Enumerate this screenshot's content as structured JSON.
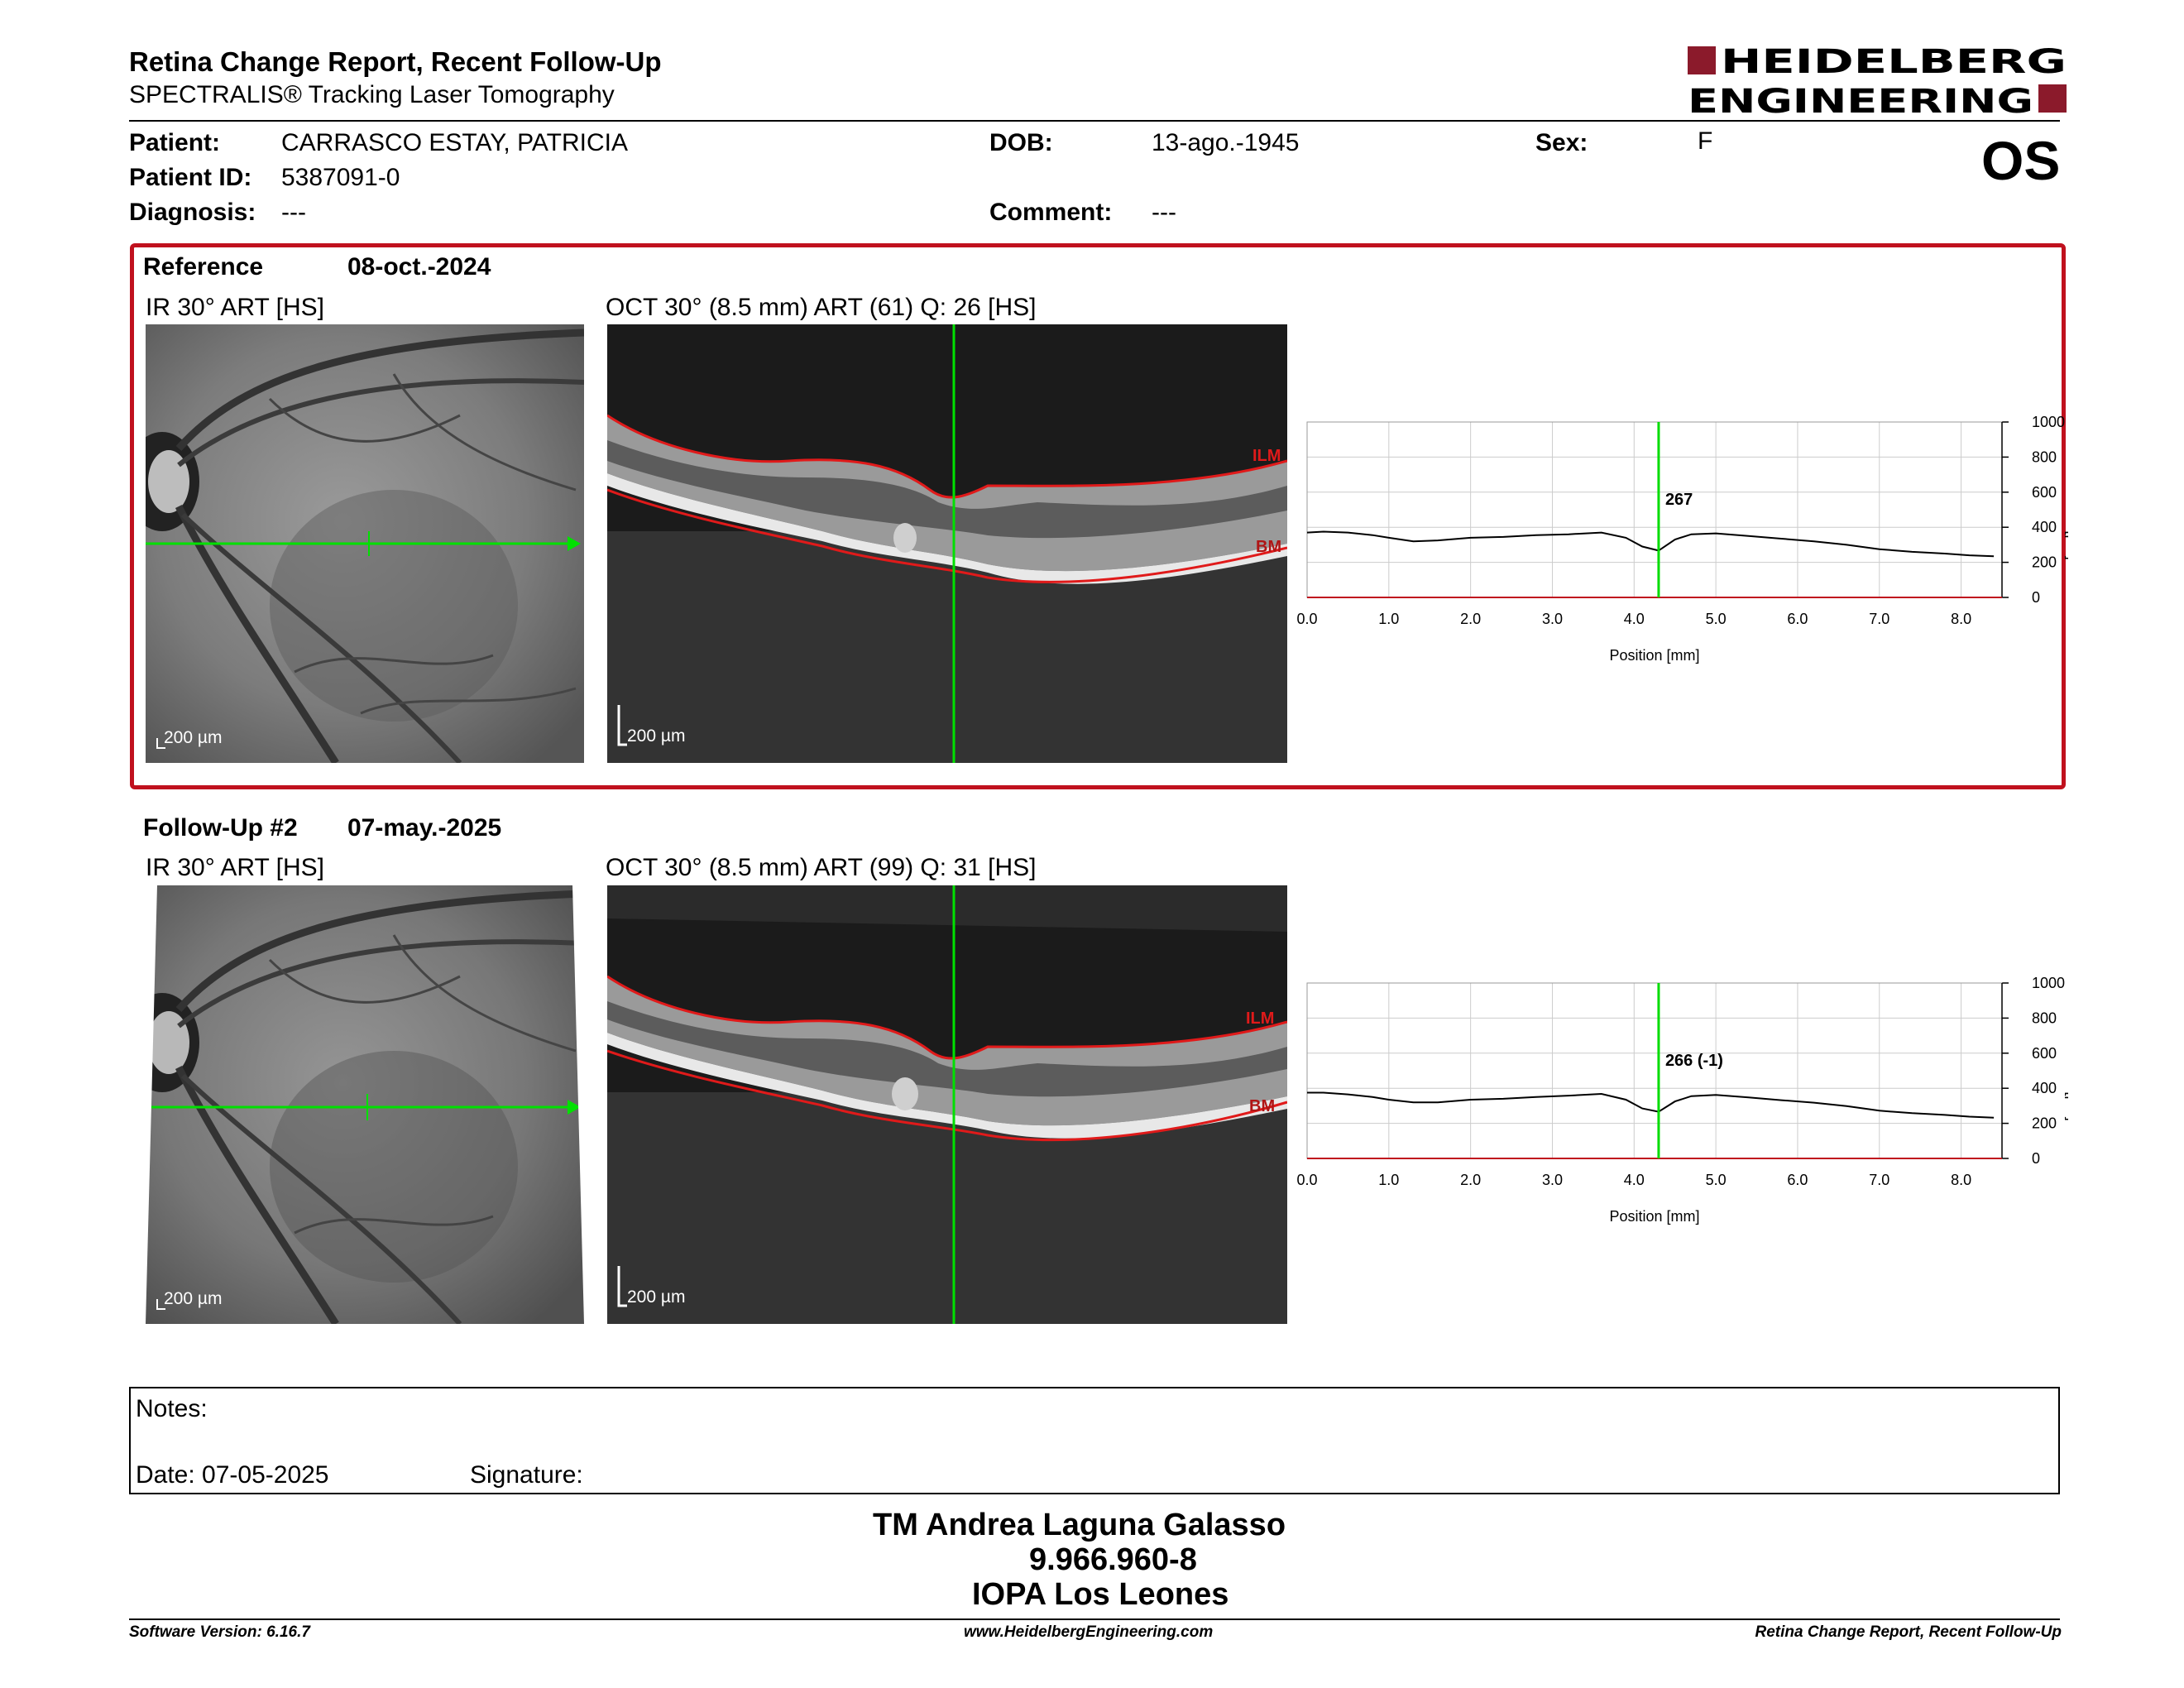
{
  "header": {
    "title": "Retina Change Report, Recent Follow-Up",
    "subtitle": "SPECTRALIS® Tracking Laser Tomography",
    "logo_line1": "HEIDELBERG",
    "logo_line2": "ENGINEERING",
    "brand_color": "#8b1a2b"
  },
  "patient": {
    "patient_label": "Patient:",
    "patient_value": "CARRASCO ESTAY, PATRICIA",
    "id_label": "Patient ID:",
    "id_value": "5387091-0",
    "diagnosis_label": "Diagnosis:",
    "diagnosis_value": "---",
    "dob_label": "DOB:",
    "dob_value": "13-ago.-1945",
    "comment_label": "Comment:",
    "comment_value": "---",
    "sex_label": "Sex:",
    "sex_value": "F",
    "eye": "OS"
  },
  "reference": {
    "label": "Reference",
    "date": "08-oct.-2024",
    "ir_title": "IR 30° ART [HS]",
    "oct_title": "OCT 30° (8.5 mm) ART (61) Q: 26 [HS]",
    "scale": "200 µm",
    "ilm_label": "ILM",
    "bm_label": "BM",
    "thickness_at_cursor": "267",
    "highlight_color": "#c0111e"
  },
  "followup": {
    "label": "Follow-Up #2",
    "date": "07-may.-2025",
    "ir_title": "IR 30° ART [HS]",
    "oct_title": "OCT 30° (8.5 mm) ART (99) Q: 31 [HS]",
    "scale": "200 µm",
    "ilm_label": "ILM",
    "bm_label": "BM",
    "thickness_at_cursor": "266 (-1)"
  },
  "chart_data": [
    {
      "type": "line",
      "name": "reference-thickness-profile",
      "xlabel": "Position [mm]",
      "ylabel": "Thickness [µm]",
      "xlim": [
        0,
        8.5
      ],
      "ylim": [
        0,
        1000
      ],
      "xticks": [
        0.0,
        1.0,
        2.0,
        3.0,
        4.0,
        5.0,
        6.0,
        7.0,
        8.0
      ],
      "yticks": [
        0,
        200,
        400,
        600,
        800,
        1000
      ],
      "grid": true,
      "cursor_x": 4.3,
      "cursor_label": "267",
      "x": [
        0,
        0.2,
        0.5,
        0.8,
        1.0,
        1.3,
        1.6,
        2.0,
        2.4,
        2.8,
        3.2,
        3.6,
        3.9,
        4.1,
        4.3,
        4.5,
        4.7,
        5.0,
        5.4,
        5.8,
        6.2,
        6.6,
        7.0,
        7.4,
        7.8,
        8.1,
        8.4
      ],
      "y": [
        370,
        375,
        370,
        355,
        340,
        320,
        325,
        340,
        345,
        355,
        360,
        370,
        340,
        290,
        267,
        330,
        360,
        365,
        350,
        335,
        320,
        300,
        275,
        260,
        250,
        240,
        235
      ]
    },
    {
      "type": "line",
      "name": "followup-thickness-profile",
      "xlabel": "Position [mm]",
      "ylabel": "Thickness [µm]",
      "xlim": [
        0,
        8.5
      ],
      "ylim": [
        0,
        1000
      ],
      "xticks": [
        0.0,
        1.0,
        2.0,
        3.0,
        4.0,
        5.0,
        6.0,
        7.0,
        8.0
      ],
      "yticks": [
        0,
        200,
        400,
        600,
        800,
        1000
      ],
      "grid": true,
      "cursor_x": 4.3,
      "cursor_label": "266 (-1)",
      "x": [
        0,
        0.2,
        0.5,
        0.8,
        1.0,
        1.3,
        1.6,
        2.0,
        2.4,
        2.8,
        3.2,
        3.6,
        3.9,
        4.1,
        4.3,
        4.5,
        4.7,
        5.0,
        5.4,
        5.8,
        6.2,
        6.6,
        7.0,
        7.4,
        7.8,
        8.1,
        8.4
      ],
      "y": [
        375,
        375,
        365,
        350,
        335,
        320,
        320,
        335,
        340,
        350,
        358,
        368,
        335,
        285,
        266,
        325,
        355,
        362,
        348,
        332,
        318,
        298,
        272,
        258,
        248,
        238,
        232
      ]
    }
  ],
  "notes": {
    "notes_label": "Notes:",
    "date_label": "Date: 07-05-2025",
    "signature_label": "Signature:"
  },
  "signature_block": {
    "name": "TM Andrea Laguna Galasso",
    "id": "9.966.960-8",
    "institution": "IOPA Los Leones"
  },
  "footer": {
    "software": "Software Version: 6.16.7",
    "website": "www.HeidelbergEngineering.com",
    "report": "Retina Change Report, Recent Follow-Up"
  }
}
